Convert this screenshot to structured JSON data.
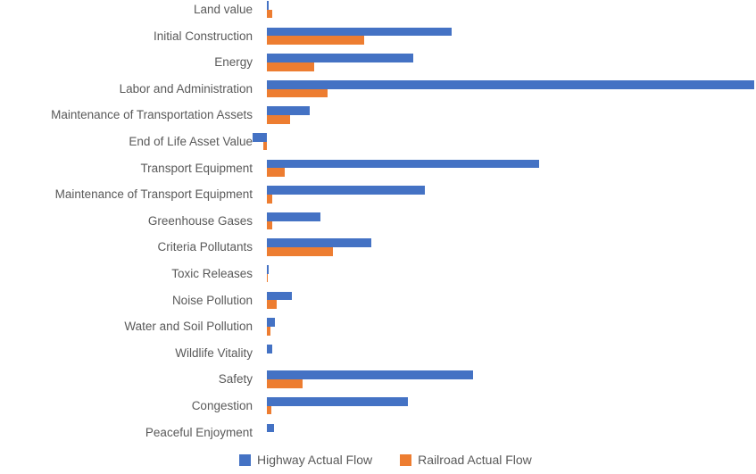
{
  "chart_data": {
    "type": "bar",
    "orientation": "horizontal",
    "title": "",
    "xlabel": "",
    "ylabel": "",
    "grid": false,
    "value_axis_visible": false,
    "legend_position": "bottom",
    "value_units": "relative, percent of longest bar (no numeric axis shown in image)",
    "xlim": [
      -3,
      100
    ],
    "categories": [
      "Land value",
      "Initial Construction",
      "Energy",
      "Labor and Administration",
      "Maintenance of Transportation Assets",
      "End of Life Asset Value",
      "Transport Equipment",
      "Maintenance of Transport Equipment",
      "Greenhouse Gases",
      "Criteria Pollutants",
      "Toxic Releases",
      "Noise Pollution",
      "Water and Soil Pollution",
      "Wildlife Vitality",
      "Safety",
      "Congestion",
      "Peaceful Enjoyment"
    ],
    "series": [
      {
        "name": "Highway Actual Flow",
        "color": "#4472C4",
        "values": [
          0.4,
          37.9,
          30.0,
          100.0,
          8.8,
          -2.9,
          55.9,
          32.5,
          11.0,
          21.4,
          0.4,
          5.1,
          1.6,
          1.1,
          42.3,
          28.9,
          1.5
        ]
      },
      {
        "name": "Railroad Actual Flow",
        "color": "#ED7D31",
        "values": [
          1.1,
          20.0,
          9.7,
          12.5,
          4.8,
          -0.8,
          3.7,
          1.1,
          1.1,
          13.6,
          0.2,
          2.0,
          0.7,
          0.0,
          7.3,
          0.9,
          0.0
        ]
      }
    ]
  }
}
